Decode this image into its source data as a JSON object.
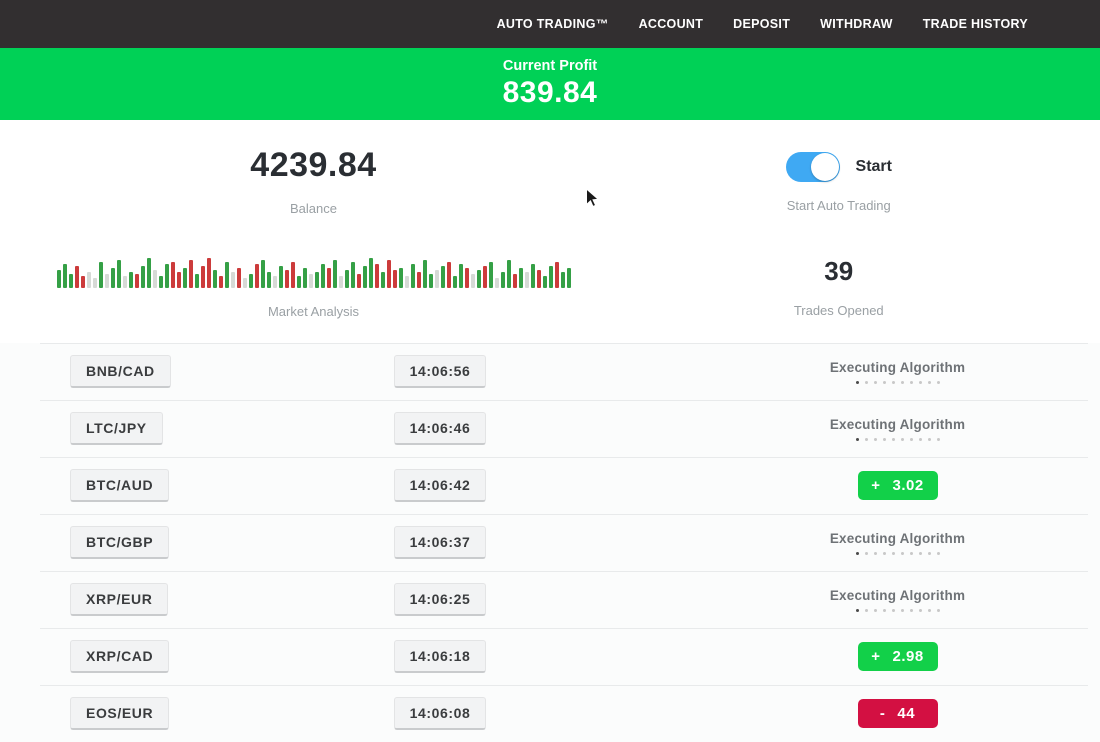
{
  "nav": {
    "items": [
      {
        "label": "AUTO TRADING™"
      },
      {
        "label": "ACCOUNT"
      },
      {
        "label": "DEPOSIT"
      },
      {
        "label": "WITHDRAW"
      },
      {
        "label": "TRADE HISTORY"
      }
    ]
  },
  "profit_banner": {
    "label": "Current Profit",
    "value": "839.84",
    "bg_color": "#00d156"
  },
  "stats": {
    "balance": {
      "value": "4239.84",
      "label": "Balance"
    },
    "auto_trading": {
      "toggle_state": "on",
      "toggle_label": "Start",
      "label": "Start Auto Trading",
      "toggle_color": "#3fa9f3"
    },
    "market_analysis": {
      "label": "Market Analysis",
      "bars": [
        "g18",
        "g24",
        "g14",
        "r22",
        "r12",
        "l16",
        "l10",
        "g26",
        "l14",
        "g20",
        "g28",
        "l12",
        "g16",
        "r14",
        "g22",
        "g30",
        "l18",
        "g12",
        "g24",
        "r26",
        "r16",
        "g20",
        "r28",
        "g14",
        "r22",
        "r30",
        "g18",
        "r12",
        "g26",
        "l16",
        "r20",
        "l10",
        "g14",
        "r24",
        "g28",
        "g16",
        "l12",
        "g22",
        "r18",
        "r26",
        "g12",
        "g20",
        "l14",
        "g16",
        "g24",
        "r20",
        "g28",
        "l12",
        "g18",
        "g26",
        "r14",
        "g22",
        "g30",
        "r24",
        "g16",
        "r28",
        "r18",
        "g20",
        "l12",
        "g24",
        "r16",
        "g28",
        "g14",
        "l18",
        "g22",
        "r26",
        "g12",
        "g24",
        "r20",
        "l14",
        "g18",
        "r22",
        "g26",
        "l10",
        "g16",
        "g28",
        "r14",
        "g20",
        "l16",
        "g24",
        "r18",
        "g12",
        "g22",
        "r26",
        "g16",
        "g20"
      ]
    },
    "trades_opened": {
      "value": "39",
      "label": "Trades Opened"
    }
  },
  "trades": {
    "executing_label": "Executing Algorithm",
    "rows": [
      {
        "pair": "BNB/CAD",
        "time": "14:06:56",
        "status": {
          "type": "executing"
        }
      },
      {
        "pair": "LTC/JPY",
        "time": "14:06:46",
        "status": {
          "type": "executing"
        }
      },
      {
        "pair": "BTC/AUD",
        "time": "14:06:42",
        "status": {
          "type": "result",
          "sign": "+",
          "value": "3.02",
          "color": "#12d049"
        }
      },
      {
        "pair": "BTC/GBP",
        "time": "14:06:37",
        "status": {
          "type": "executing"
        }
      },
      {
        "pair": "XRP/EUR",
        "time": "14:06:25",
        "status": {
          "type": "executing"
        }
      },
      {
        "pair": "XRP/CAD",
        "time": "14:06:18",
        "status": {
          "type": "result",
          "sign": "+",
          "value": "2.98",
          "color": "#12d049"
        }
      },
      {
        "pair": "EOS/EUR",
        "time": "14:06:08",
        "status": {
          "type": "result",
          "sign": "-",
          "value": "44",
          "color": "#d31042"
        }
      }
    ]
  },
  "colors": {
    "nav_bg": "#322f30",
    "banner_green": "#00d156",
    "badge_green": "#12d049",
    "badge_red": "#d31042",
    "toggle_blue": "#3fa9f3",
    "bar_green": "#35a046",
    "bar_red": "#cc3b3b"
  }
}
